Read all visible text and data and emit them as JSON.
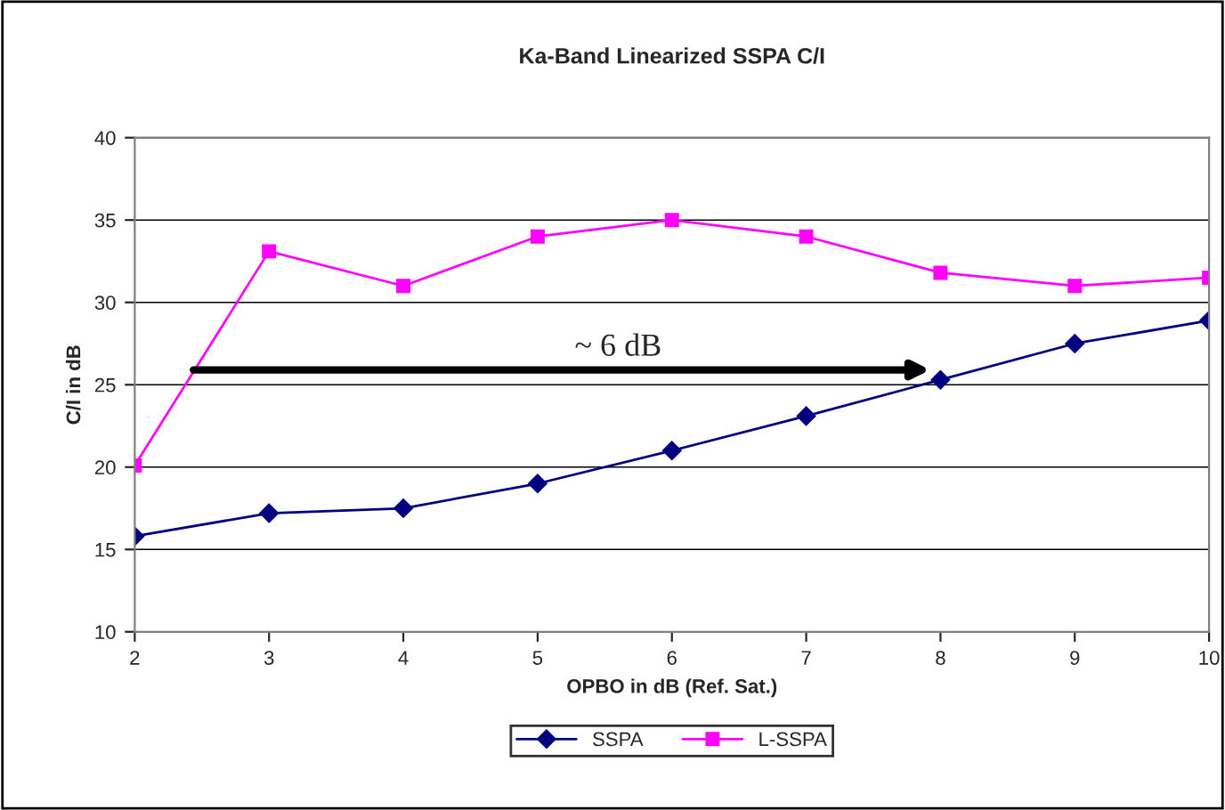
{
  "chart_data": {
    "type": "line",
    "title": "Ka-Band Linearized SSPA C/I",
    "xlabel": "OPBO in dB (Ref. Sat.)",
    "ylabel": "C/I in dB",
    "x": [
      2,
      3,
      4,
      5,
      6,
      7,
      8,
      9,
      10
    ],
    "series": [
      {
        "name": "SSPA",
        "color": "#000080",
        "marker": "diamond",
        "values": [
          15.8,
          17.2,
          17.5,
          19,
          21,
          23.1,
          25.3,
          27.5,
          28.9
        ]
      },
      {
        "name": "L-SSPA",
        "color": "#ff00ff",
        "marker": "square",
        "values": [
          20.1,
          33.1,
          31,
          34,
          35,
          34,
          31.8,
          31,
          31.5
        ]
      }
    ],
    "xlim": [
      2,
      10
    ],
    "xticks": [
      2,
      3,
      4,
      5,
      6,
      7,
      8,
      9,
      10
    ],
    "ylim": [
      10,
      40
    ],
    "yticks": [
      10,
      15,
      20,
      25,
      30,
      35,
      40
    ],
    "grid": "y",
    "legend": "bottom",
    "line_style": "solid",
    "annotations": [
      "~ 6 dB"
    ]
  }
}
